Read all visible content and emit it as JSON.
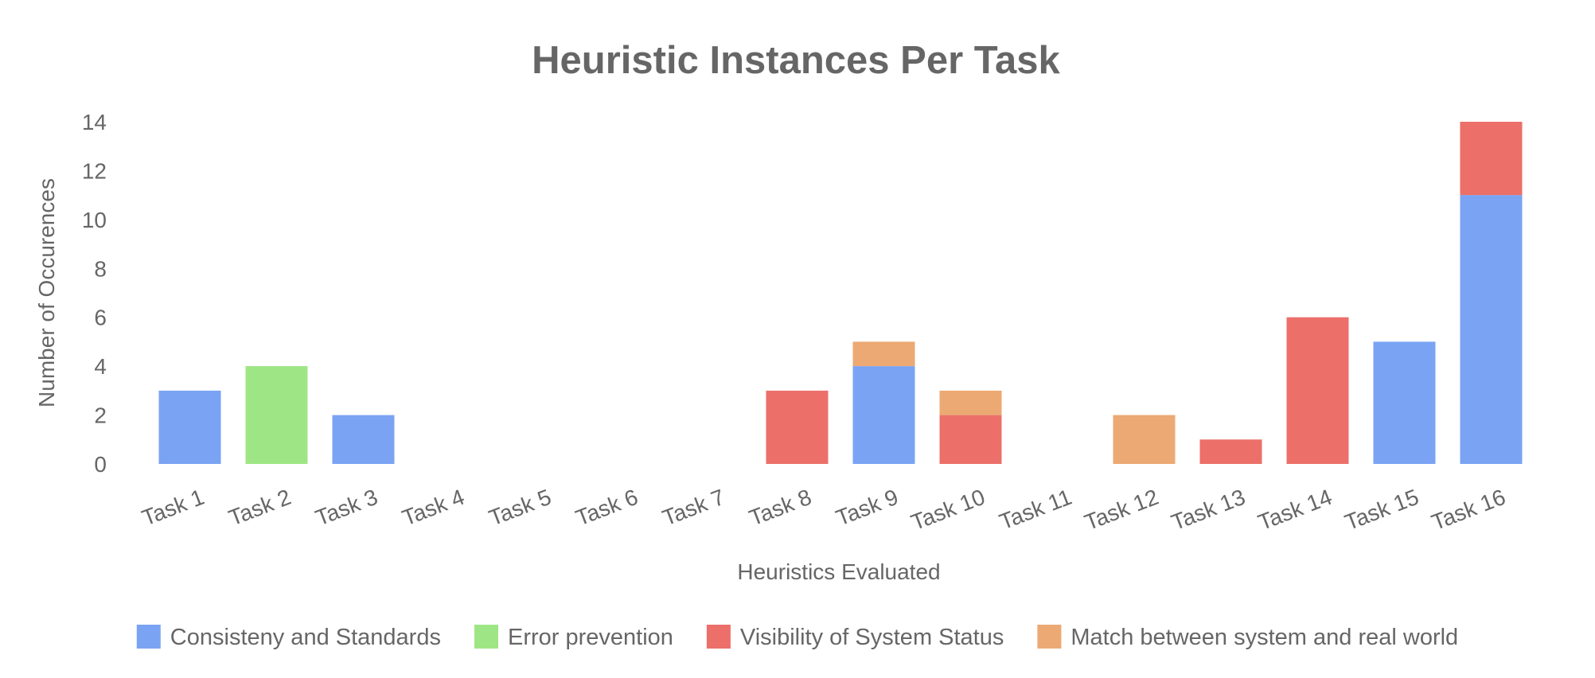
{
  "chart_data": {
    "type": "bar",
    "stacked": true,
    "title": "Heuristic Instances Per Task",
    "xlabel": "Heuristics Evaluated",
    "ylabel": "Number of Occurences",
    "ylim": [
      0,
      14
    ],
    "yticks": [
      0,
      2,
      4,
      6,
      8,
      10,
      12,
      14
    ],
    "grid": false,
    "legend_position": "bottom",
    "categories": [
      "Task 1",
      "Task 2",
      "Task 3",
      "Task 4",
      "Task 5",
      "Task 6",
      "Task 7",
      "Task 8",
      "Task 9",
      "Task 10",
      "Task 11",
      "Task 12",
      "Task 13",
      "Task 14",
      "Task 15",
      "Task 16"
    ],
    "series": [
      {
        "name": "Consisteny and Standards",
        "color": "#7aa3f3",
        "values": [
          3,
          0,
          2,
          0,
          0,
          0,
          0,
          0,
          4,
          0,
          0,
          0,
          0,
          0,
          5,
          11
        ]
      },
      {
        "name": "Error prevention",
        "color": "#9ee685",
        "values": [
          0,
          4,
          0,
          0,
          0,
          0,
          0,
          0,
          0,
          0,
          0,
          0,
          0,
          0,
          0,
          0
        ]
      },
      {
        "name": "Visibility of System Status",
        "color": "#ec6f6a",
        "values": [
          0,
          0,
          0,
          0,
          0,
          0,
          0,
          3,
          0,
          2,
          0,
          0,
          1,
          6,
          0,
          3
        ]
      },
      {
        "name": "Match between system and real world",
        "color": "#eca973",
        "values": [
          0,
          0,
          0,
          0,
          0,
          0,
          0,
          0,
          1,
          1,
          0,
          2,
          0,
          0,
          0,
          0
        ]
      }
    ]
  },
  "colors": {
    "text": "#666666",
    "background": "#ffffff"
  }
}
